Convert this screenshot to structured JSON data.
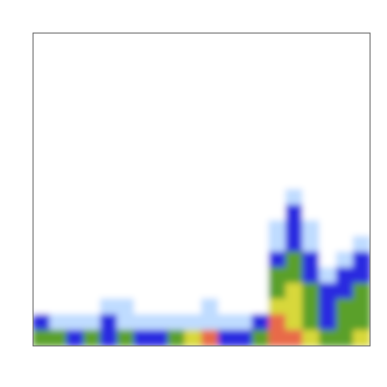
{
  "chart_data": {
    "type": "heatmap",
    "colors": [
      "#ffffff",
      "#bfdcff",
      "#2a2ae0",
      "#5aa02a",
      "#d8d83a",
      "#e86a4a"
    ],
    "values": [
      [
        0,
        0,
        0,
        0,
        0,
        0,
        0,
        0,
        0,
        0,
        0,
        0,
        0,
        0,
        0,
        0,
        0,
        0,
        0,
        0
      ],
      [
        0,
        0,
        0,
        0,
        0,
        0,
        0,
        0,
        0,
        0,
        0,
        0,
        0,
        0,
        0,
        0,
        0,
        0,
        0,
        0
      ],
      [
        0,
        0,
        0,
        0,
        0,
        0,
        0,
        0,
        0,
        0,
        0,
        0,
        0,
        0,
        0,
        0,
        0,
        0,
        0,
        0
      ],
      [
        0,
        0,
        0,
        0,
        0,
        0,
        0,
        0,
        0,
        0,
        0,
        0,
        0,
        0,
        0,
        0,
        0,
        0,
        0,
        0
      ],
      [
        0,
        0,
        0,
        0,
        0,
        0,
        0,
        0,
        0,
        0,
        0,
        0,
        0,
        0,
        0,
        0,
        0,
        0,
        0,
        0
      ],
      [
        0,
        0,
        0,
        0,
        0,
        0,
        0,
        0,
        0,
        0,
        0,
        0,
        0,
        0,
        0,
        0,
        0,
        0,
        0,
        0
      ],
      [
        0,
        0,
        0,
        0,
        0,
        0,
        0,
        0,
        0,
        0,
        0,
        0,
        0,
        0,
        0,
        0,
        0,
        0,
        0,
        0
      ],
      [
        0,
        0,
        0,
        0,
        0,
        0,
        0,
        0,
        0,
        0,
        0,
        0,
        0,
        0,
        0,
        0,
        0,
        0,
        0,
        0
      ],
      [
        0,
        0,
        0,
        0,
        0,
        0,
        0,
        0,
        0,
        0,
        0,
        0,
        0,
        0,
        0,
        0,
        0,
        0,
        0,
        0
      ],
      [
        0,
        0,
        0,
        0,
        0,
        0,
        0,
        0,
        0,
        0,
        0,
        0,
        0,
        0,
        0,
        0,
        0,
        0,
        0,
        0
      ],
      [
        0,
        0,
        0,
        0,
        0,
        0,
        0,
        0,
        0,
        0,
        0,
        0,
        0,
        0,
        0,
        1,
        0,
        0,
        0,
        0
      ],
      [
        0,
        0,
        0,
        0,
        0,
        0,
        0,
        0,
        0,
        0,
        0,
        0,
        0,
        0,
        0,
        2,
        0,
        0,
        0,
        0
      ],
      [
        0,
        0,
        0,
        0,
        0,
        0,
        0,
        0,
        0,
        0,
        0,
        0,
        0,
        0,
        1,
        2,
        1,
        0,
        0,
        0
      ],
      [
        0,
        0,
        0,
        0,
        0,
        0,
        0,
        0,
        0,
        0,
        0,
        0,
        0,
        0,
        1,
        2,
        1,
        0,
        0,
        1
      ],
      [
        0,
        0,
        0,
        0,
        0,
        0,
        0,
        0,
        0,
        0,
        0,
        0,
        0,
        0,
        2,
        3,
        2,
        0,
        1,
        2
      ],
      [
        0,
        0,
        0,
        0,
        0,
        0,
        0,
        0,
        0,
        0,
        0,
        0,
        0,
        0,
        3,
        3,
        2,
        1,
        2,
        2
      ],
      [
        0,
        0,
        0,
        0,
        0,
        0,
        0,
        0,
        0,
        0,
        0,
        0,
        0,
        0,
        3,
        4,
        3,
        2,
        2,
        3
      ],
      [
        0,
        0,
        0,
        0,
        1,
        1,
        0,
        0,
        0,
        0,
        1,
        0,
        0,
        0,
        4,
        4,
        3,
        2,
        3,
        3
      ],
      [
        2,
        1,
        1,
        1,
        2,
        1,
        1,
        1,
        1,
        1,
        1,
        1,
        1,
        2,
        5,
        4,
        3,
        2,
        3,
        3
      ],
      [
        3,
        3,
        2,
        3,
        2,
        3,
        2,
        2,
        3,
        4,
        5,
        2,
        2,
        3,
        5,
        5,
        4,
        3,
        3,
        4
      ]
    ]
  }
}
